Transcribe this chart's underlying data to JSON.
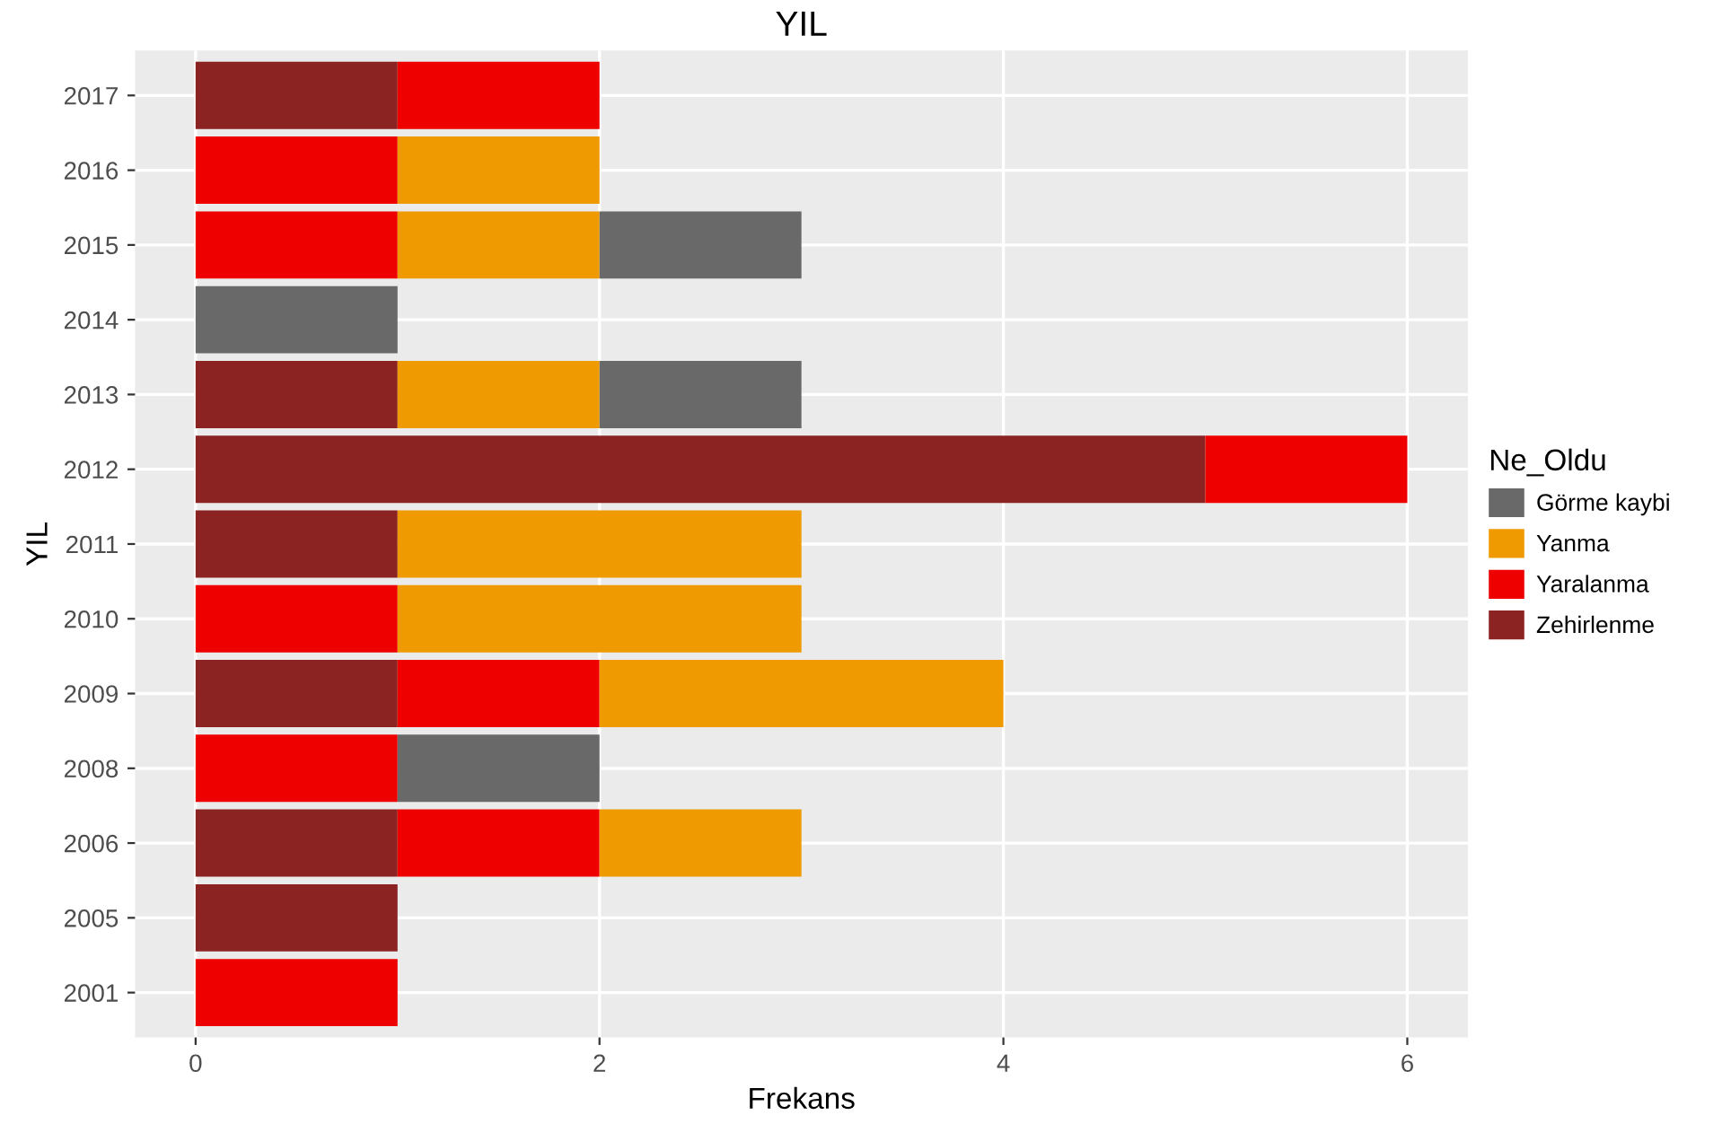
{
  "chart_data": {
    "type": "bar",
    "orientation": "horizontal",
    "stacked": true,
    "title": "YIL",
    "xlabel": "Frekans",
    "ylabel": "YIL",
    "legend_title": "Ne_Oldu",
    "legend": "right",
    "grid": true,
    "categories": [
      "2017",
      "2016",
      "2015",
      "2014",
      "2013",
      "2012",
      "2011",
      "2010",
      "2009",
      "2008",
      "2006",
      "2005",
      "2001"
    ],
    "xlim": [
      -0.3,
      6.3
    ],
    "xticks": [
      0,
      2,
      4,
      6
    ],
    "series": [
      {
        "name": "Zehirlenme",
        "color": "#8b2323",
        "values": [
          1,
          null,
          null,
          null,
          1,
          5,
          1,
          null,
          1,
          null,
          1,
          1,
          null
        ]
      },
      {
        "name": "Yaralanma",
        "color": "#ee0000",
        "values": [
          1,
          1,
          1,
          null,
          null,
          1,
          null,
          1,
          1,
          1,
          1,
          null,
          1
        ]
      },
      {
        "name": "Yanma",
        "color": "#ee9a00",
        "values": [
          null,
          1,
          1,
          null,
          1,
          null,
          2,
          2,
          2,
          null,
          1,
          null,
          null
        ]
      },
      {
        "name": "Görme kaybi",
        "color": "#696969",
        "values": [
          null,
          null,
          1,
          1,
          1,
          null,
          null,
          null,
          null,
          1,
          null,
          null,
          null
        ]
      }
    ]
  }
}
